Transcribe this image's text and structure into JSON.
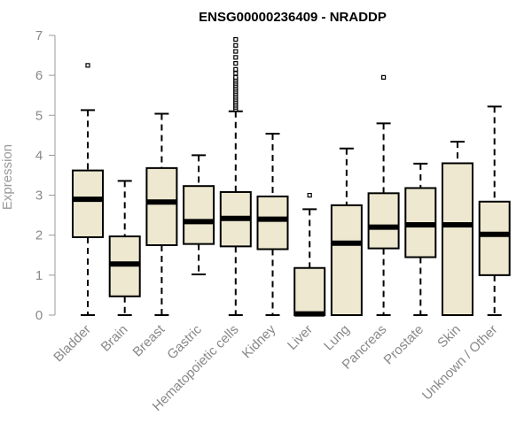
{
  "chart_data": {
    "type": "boxplot",
    "title": "ENSG00000236409 - NRADDP",
    "xlabel": "",
    "ylabel": "Expression",
    "ylim": [
      0,
      7
    ],
    "yticks": [
      "0",
      "1",
      "2",
      "3",
      "4",
      "5",
      "6",
      "7"
    ],
    "grid": false,
    "box_fill": "#ede8cf",
    "box_stroke": "#000000",
    "axis_color": "#999999",
    "categories": [
      "Bladder",
      "Brain",
      "Breast",
      "Gastric",
      "Hematopoietic cells",
      "Kidney",
      "Liver",
      "Lung",
      "Pancreas",
      "Prostate",
      "Skin",
      "Unknown / Other"
    ],
    "boxes": [
      {
        "whisker_low": 0.0,
        "q1": 1.95,
        "median": 2.9,
        "q3": 3.62,
        "whisker_high": 5.13,
        "outliers": [
          6.25
        ]
      },
      {
        "whisker_low": 0.0,
        "q1": 0.47,
        "median": 1.28,
        "q3": 1.97,
        "whisker_high": 3.36,
        "outliers": []
      },
      {
        "whisker_low": 0.0,
        "q1": 1.75,
        "median": 2.83,
        "q3": 3.68,
        "whisker_high": 5.04,
        "outliers": []
      },
      {
        "whisker_low": 1.02,
        "q1": 1.78,
        "median": 2.34,
        "q3": 3.23,
        "whisker_high": 4.0,
        "outliers": []
      },
      {
        "whisker_low": 0.0,
        "q1": 1.72,
        "median": 2.42,
        "q3": 3.08,
        "whisker_high": 5.1,
        "outliers": [
          5.15,
          5.2,
          5.25,
          5.3,
          5.35,
          5.4,
          5.45,
          5.5,
          5.55,
          5.6,
          5.65,
          5.7,
          5.75,
          5.8,
          5.85,
          5.9,
          5.95,
          6.05,
          6.15,
          6.3,
          6.45,
          6.6,
          6.75,
          6.9
        ]
      },
      {
        "whisker_low": 0.0,
        "q1": 1.65,
        "median": 2.4,
        "q3": 2.97,
        "whisker_high": 4.54,
        "outliers": []
      },
      {
        "whisker_low": 0.0,
        "q1": 0.0,
        "median": 0.03,
        "q3": 1.18,
        "whisker_high": 2.65,
        "outliers": [
          3.0
        ]
      },
      {
        "whisker_low": 0.0,
        "q1": 0.0,
        "median": 1.8,
        "q3": 2.75,
        "whisker_high": 4.17,
        "outliers": []
      },
      {
        "whisker_low": 0.0,
        "q1": 1.67,
        "median": 2.2,
        "q3": 3.05,
        "whisker_high": 4.8,
        "outliers": [
          5.95
        ]
      },
      {
        "whisker_low": 0.0,
        "q1": 1.45,
        "median": 2.26,
        "q3": 3.18,
        "whisker_high": 3.79,
        "outliers": []
      },
      {
        "whisker_low": 0.0,
        "q1": 0.0,
        "median": 2.26,
        "q3": 3.8,
        "whisker_high": 4.34,
        "outliers": []
      },
      {
        "whisker_low": 0.0,
        "q1": 1.0,
        "median": 2.02,
        "q3": 2.84,
        "whisker_high": 5.22,
        "outliers": []
      }
    ]
  }
}
